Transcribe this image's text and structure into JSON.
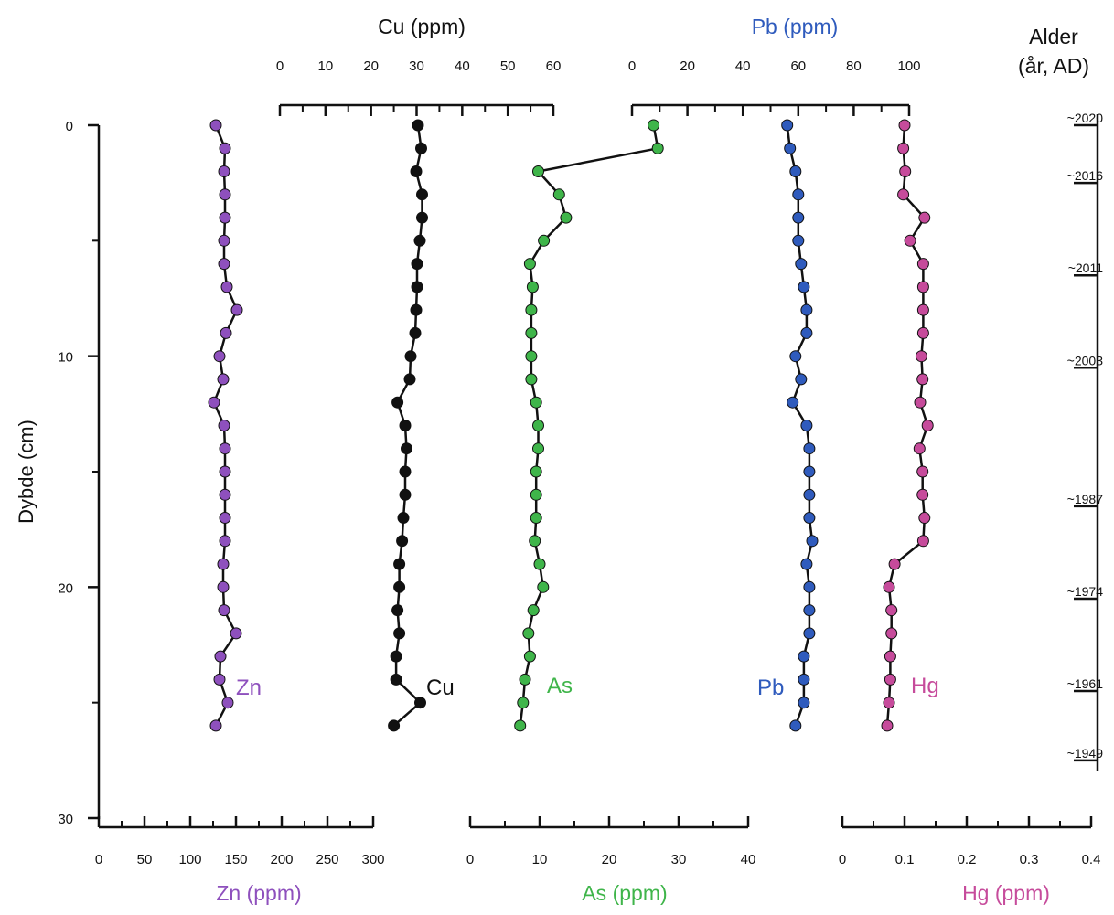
{
  "chart_data": {
    "type": "scatter",
    "y": {
      "label": "Dybde (cm)",
      "lim": [
        0,
        30
      ],
      "ticks": [
        "0",
        "10",
        "20",
        "30"
      ],
      "minor": true
    },
    "depths": [
      0,
      1,
      2,
      3,
      4,
      5,
      6,
      7,
      8,
      9,
      10,
      11,
      12,
      13,
      14,
      15,
      16,
      17,
      18,
      19,
      20,
      21,
      22,
      23,
      24,
      25,
      26
    ],
    "axes": [
      {
        "key": "Zn",
        "label": "Zn (ppm)",
        "lim": [
          0,
          300
        ],
        "ticks": [
          "0",
          "50",
          "100",
          "150",
          "200",
          "250",
          "300"
        ],
        "color": "#8e50bd"
      },
      {
        "key": "Cu",
        "label": "Cu (ppm)",
        "lim": [
          0,
          60
        ],
        "ticks": [
          "0",
          "10",
          "20",
          "30",
          "40",
          "50",
          "60"
        ],
        "color": "#111111"
      },
      {
        "key": "As",
        "label": "As (ppm)",
        "lim": [
          0,
          40
        ],
        "ticks": [
          "0",
          "10",
          "20",
          "30",
          "40"
        ],
        "color": "#3fb54a"
      },
      {
        "key": "Pb",
        "label": "Pb (ppm)",
        "lim": [
          0,
          100
        ],
        "ticks": [
          "0",
          "20",
          "40",
          "60",
          "80",
          "100"
        ],
        "color": "#2f5bbd"
      },
      {
        "key": "Hg",
        "label": "Hg (ppm)",
        "lim": [
          0,
          0.4
        ],
        "ticks": [
          "0",
          "0.1",
          "0.2",
          "0.3",
          "0.4"
        ],
        "color": "#c64b9b"
      }
    ],
    "series": [
      {
        "name": "Zn",
        "axis": "Zn",
        "color": "#8e50bd",
        "values": [
          128,
          138,
          137,
          138,
          138,
          137,
          137,
          140,
          151,
          139,
          132,
          136,
          126,
          137,
          138,
          138,
          138,
          138,
          138,
          136,
          136,
          137,
          150,
          133,
          132,
          141,
          128
        ]
      },
      {
        "name": "Cu",
        "axis": "Cu",
        "color": "#111111",
        "values": [
          30.3,
          31,
          29.9,
          31.2,
          31.2,
          30.7,
          30.1,
          30.1,
          29.9,
          29.7,
          28.7,
          28.5,
          25.8,
          27.5,
          27.8,
          27.5,
          27.5,
          27.1,
          26.8,
          26.2,
          26.2,
          25.8,
          26.2,
          25.5,
          25.5,
          30.8,
          25
        ]
      },
      {
        "name": "As",
        "axis": "As",
        "color": "#3fb54a",
        "values": [
          26.4,
          27,
          9.8,
          12.8,
          13.8,
          10.6,
          8.6,
          9,
          8.8,
          8.8,
          8.8,
          8.8,
          9.5,
          9.8,
          9.8,
          9.5,
          9.5,
          9.5,
          9.3,
          10,
          10.5,
          9.1,
          8.4,
          8.6,
          7.9,
          7.6,
          7.2
        ]
      },
      {
        "name": "Pb",
        "axis": "Pb",
        "color": "#2f5bbd",
        "values": [
          56,
          57,
          59,
          60,
          60,
          60,
          61,
          62,
          63,
          63,
          59,
          61,
          58,
          63,
          64,
          64,
          64,
          64,
          65,
          63,
          64,
          64,
          64,
          62,
          62,
          62,
          59
        ]
      },
      {
        "name": "Hg",
        "axis": "Hg",
        "color": "#c64b9b",
        "values": [
          0.1,
          0.098,
          0.101,
          0.098,
          0.132,
          0.109,
          0.13,
          0.13,
          0.13,
          0.13,
          0.127,
          0.129,
          0.125,
          0.137,
          0.124,
          0.129,
          0.129,
          0.132,
          0.13,
          0.084,
          0.075,
          0.079,
          0.079,
          0.077,
          0.077,
          0.075,
          0.072
        ]
      }
    ],
    "series_labels": [
      "Zn",
      "Cu",
      "As",
      "Pb",
      "Hg"
    ],
    "age_axis": {
      "title_line1": "Alder",
      "title_line2": "(år, AD)",
      "marks": [
        {
          "depth": 0,
          "label": "~2020"
        },
        {
          "depth": 2.5,
          "label": "~2016"
        },
        {
          "depth": 6.5,
          "label": "~2011"
        },
        {
          "depth": 10.5,
          "label": "~2003"
        },
        {
          "depth": 16.5,
          "label": "~1987"
        },
        {
          "depth": 20.5,
          "label": "~1974"
        },
        {
          "depth": 24.5,
          "label": "~1961"
        },
        {
          "depth": 27.5,
          "label": "~1949"
        }
      ]
    },
    "grid": false,
    "legend": "none"
  }
}
